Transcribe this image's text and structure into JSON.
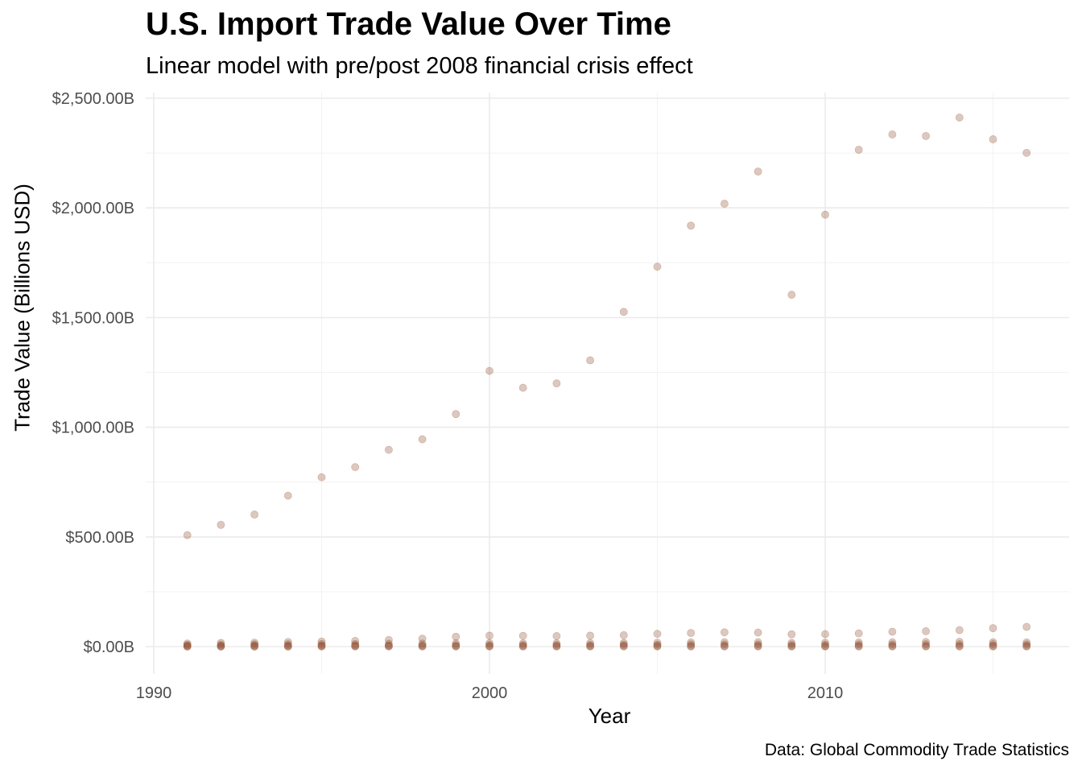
{
  "chart_data": {
    "type": "scatter",
    "title": "U.S. Import Trade Value Over Time",
    "subtitle": "Linear model with pre/post 2008 financial crisis effect",
    "xlabel": "Year",
    "ylabel": "Trade Value (Billions USD)",
    "caption": "Data: Global Commodity Trade Statistics",
    "xlim": [
      1990,
      2017
    ],
    "ylim": [
      -100,
      2550
    ],
    "x_ticks": [
      1990,
      2000,
      2010
    ],
    "x_tick_labels": [
      "1990",
      "2000",
      "2010"
    ],
    "y_ticks": [
      0,
      500,
      1000,
      1500,
      2000,
      2500
    ],
    "y_tick_labels": [
      "$0.00B",
      "$500.00B",
      "$1,000.00B",
      "$1,500.00B",
      "$2,000.00B",
      "$2,500.00B"
    ],
    "grid": true,
    "point_color": "#8B4A2B",
    "series": [
      {
        "x": [
          1991,
          1992,
          1993,
          1994,
          1995,
          1996,
          1997,
          1998,
          1999,
          2000,
          2001,
          2002,
          2003,
          2004,
          2005,
          2006,
          2007,
          2008,
          2009,
          2010,
          2011,
          2012,
          2013,
          2014,
          2015,
          2016
        ],
        "values": [
          508,
          555,
          602,
          688,
          772,
          818,
          897,
          945,
          1060,
          1257,
          1180,
          1200,
          1305,
          1526,
          1732,
          1919,
          2019,
          2166,
          1604,
          1969,
          2265,
          2335,
          2328,
          2412,
          2313,
          2251
        ]
      },
      {
        "x": [
          1991,
          1992,
          1993,
          1994,
          1995,
          1996,
          1997,
          1998,
          1999,
          2000,
          2001,
          2002,
          2003,
          2004,
          2005,
          2006,
          2007,
          2008,
          2009,
          2010,
          2011,
          2012,
          2013,
          2014,
          2015,
          2016
        ],
        "values": [
          14,
          17,
          18,
          21,
          23,
          26,
          30,
          36,
          45,
          50,
          49,
          48,
          50,
          52,
          58,
          62,
          65,
          64,
          56,
          57,
          60,
          68,
          70,
          75,
          84,
          90
        ]
      },
      {
        "x": [
          1991,
          1992,
          1993,
          1994,
          1995,
          1996,
          1997,
          1998,
          1999,
          2000,
          2001,
          2002,
          2003,
          2004,
          2005,
          2006,
          2007,
          2008,
          2009,
          2010,
          2011,
          2012,
          2013,
          2014,
          2015,
          2016
        ],
        "values": [
          8,
          9,
          10,
          11,
          12,
          12,
          13,
          14,
          15,
          16,
          15,
          15,
          16,
          17,
          18,
          19,
          20,
          20,
          17,
          18,
          19,
          20,
          21,
          22,
          20,
          19
        ]
      },
      {
        "x": [
          1991,
          1992,
          1993,
          1994,
          1995,
          1996,
          1997,
          1998,
          1999,
          2000,
          2001,
          2002,
          2003,
          2004,
          2005,
          2006,
          2007,
          2008,
          2009,
          2010,
          2011,
          2012,
          2013,
          2014,
          2015,
          2016
        ],
        "values": [
          4,
          4,
          5,
          5,
          6,
          6,
          6,
          7,
          7,
          8,
          8,
          8,
          8,
          9,
          9,
          10,
          10,
          10,
          9,
          9,
          10,
          10,
          11,
          11,
          11,
          10
        ]
      },
      {
        "x": [
          1991,
          1992,
          1993,
          1994,
          1995,
          1996,
          1997,
          1998,
          1999,
          2000,
          2001,
          2002,
          2003,
          2004,
          2005,
          2006,
          2007,
          2008,
          2009,
          2010,
          2011,
          2012,
          2013,
          2014,
          2015,
          2016
        ],
        "values": [
          1,
          1,
          1,
          1,
          2,
          2,
          2,
          2,
          2,
          2,
          2,
          2,
          2,
          3,
          3,
          3,
          3,
          3,
          2,
          2,
          3,
          3,
          3,
          3,
          3,
          3
        ]
      },
      {
        "x": [
          1991,
          1992,
          1993,
          1994,
          1995,
          1996,
          1997,
          1998,
          1999,
          2000,
          2001,
          2002,
          2003,
          2004,
          2005,
          2006,
          2007,
          2008,
          2009,
          2010,
          2011,
          2012,
          2013,
          2014,
          2015,
          2016
        ],
        "values": [
          0.2,
          0.2,
          0.2,
          0.2,
          0.3,
          0.3,
          0.3,
          0.3,
          0.3,
          0.4,
          0.4,
          0.4,
          0.4,
          0.4,
          0.5,
          0.5,
          0.5,
          0.5,
          0.4,
          0.4,
          0.5,
          0.5,
          0.5,
          0.5,
          0.5,
          0.5
        ]
      }
    ]
  }
}
